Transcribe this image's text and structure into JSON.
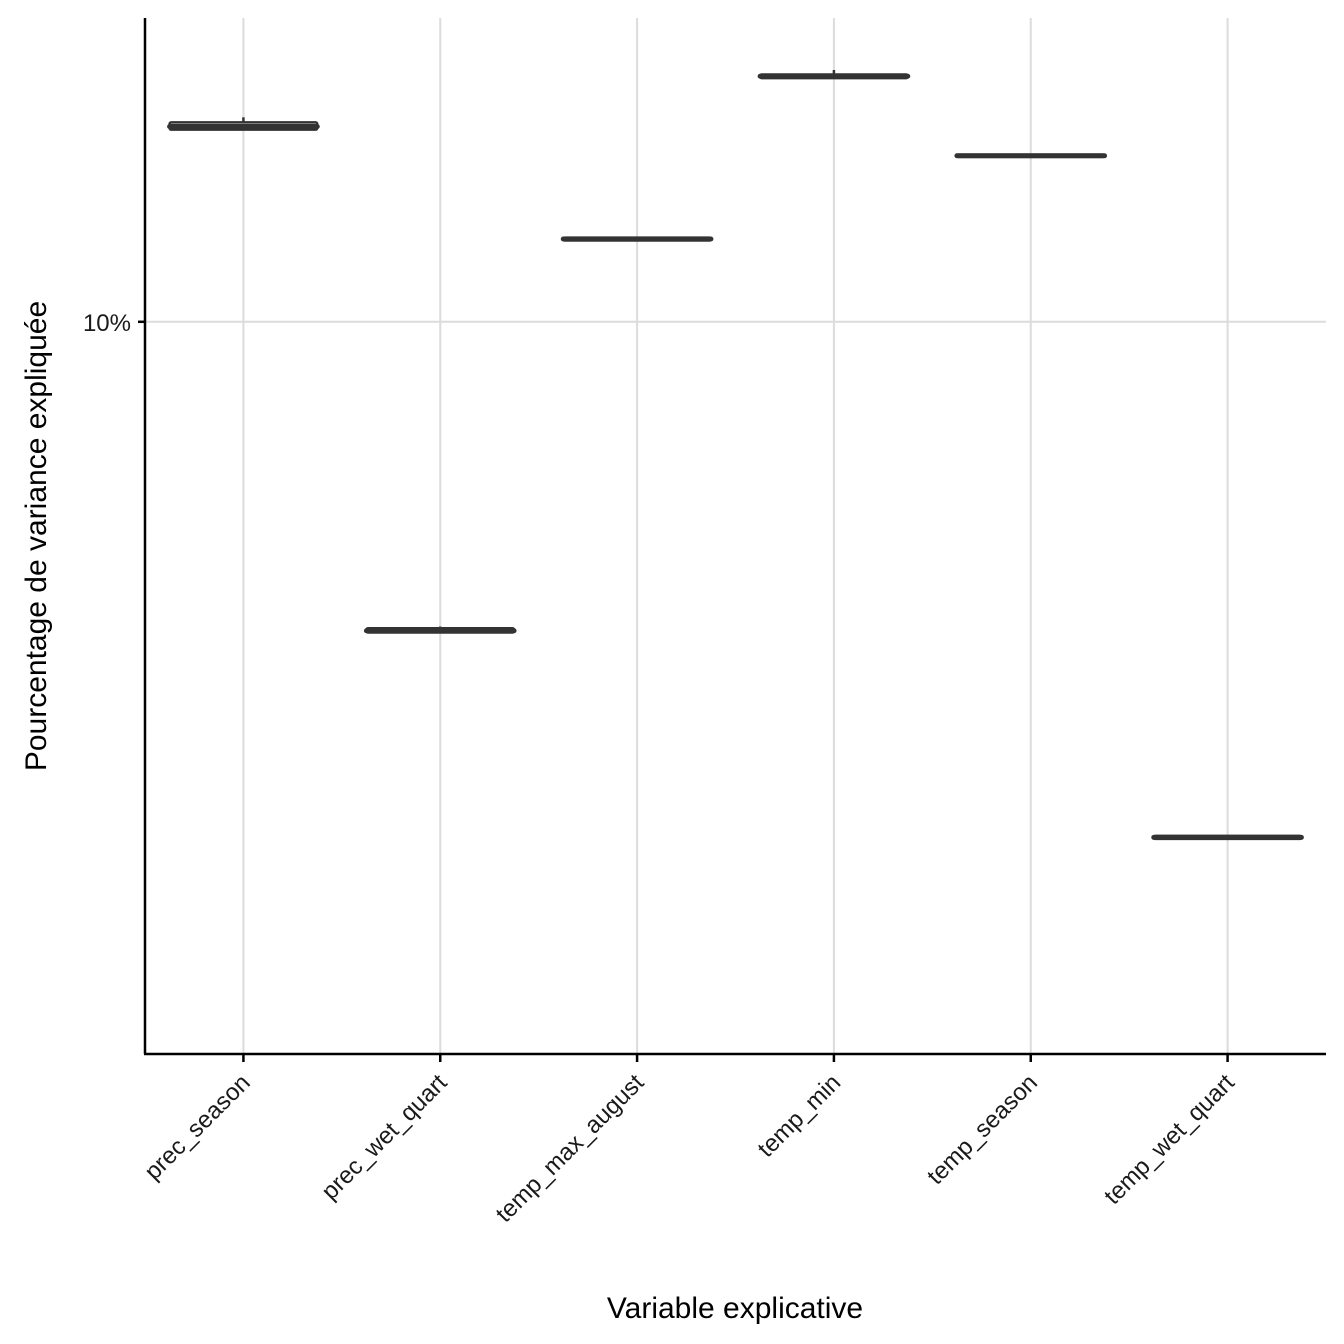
{
  "chart_data": {
    "type": "boxplot",
    "title": "",
    "xlabel": "Variable explicative",
    "ylabel": "Pourcentage de variance expliquée",
    "y_scale": "log10",
    "ylim": [
      1.48,
      20.2
    ],
    "y_ticks": [
      {
        "value": 10,
        "label": "10%"
      }
    ],
    "grid": true,
    "categories": [
      "prec_season",
      "prec_wet_quart",
      "temp_max_august",
      "temp_min",
      "temp_season",
      "temp_wet_quart"
    ],
    "boxes": [
      {
        "category": "prec_season",
        "q1": 17.1,
        "median": 17.25,
        "q3": 17.45,
        "whisker_high": 17.7,
        "whisker_low": 17.1
      },
      {
        "category": "prec_wet_quart",
        "q1": 4.2,
        "median": 4.22,
        "q3": 4.25,
        "whisker_high": 4.27,
        "whisker_low": 4.2
      },
      {
        "category": "temp_max_august",
        "q1": 12.55,
        "median": 12.6,
        "q3": 12.65,
        "whisker_high": 12.65,
        "whisker_low": 12.55
      },
      {
        "category": "temp_min",
        "q1": 19.75,
        "median": 19.85,
        "q3": 19.95,
        "whisker_high": 20.2,
        "whisker_low": 19.75
      },
      {
        "category": "temp_season",
        "q1": 15.85,
        "median": 15.9,
        "q3": 15.95,
        "whisker_high": 15.95,
        "whisker_low": 15.85
      },
      {
        "category": "temp_wet_quart",
        "q1": 2.36,
        "median": 2.37,
        "q3": 2.38,
        "whisker_high": 2.38,
        "whisker_low": 2.36
      }
    ]
  }
}
